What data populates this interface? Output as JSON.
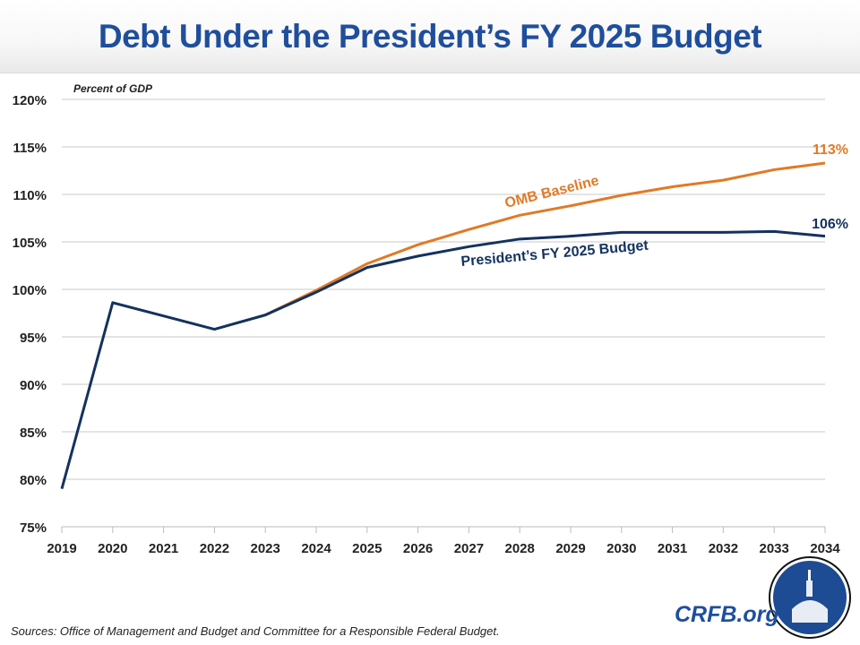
{
  "chart_data": {
    "type": "line",
    "title": "Debt Under the President’s FY 2025 Budget",
    "ylabel": "Percent of GDP",
    "xlabel": "",
    "x": [
      2019,
      2020,
      2021,
      2022,
      2023,
      2024,
      2025,
      2026,
      2027,
      2028,
      2029,
      2030,
      2031,
      2032,
      2033,
      2034
    ],
    "xlim": [
      2019,
      2034
    ],
    "ylim": [
      75,
      120
    ],
    "yticks": [
      75,
      80,
      85,
      90,
      95,
      100,
      105,
      110,
      115,
      120
    ],
    "ytick_labels": [
      "75%",
      "80%",
      "85%",
      "90%",
      "95%",
      "100%",
      "105%",
      "110%",
      "115%",
      "120%"
    ],
    "grid": "horizontal",
    "series": [
      {
        "name": "OMB Baseline",
        "color": "#e07a26",
        "end_label": "113%",
        "x": [
          2023,
          2024,
          2025,
          2026,
          2027,
          2028,
          2029,
          2030,
          2031,
          2032,
          2033,
          2034
        ],
        "values": [
          97.3,
          99.9,
          102.7,
          104.7,
          106.3,
          107.8,
          108.8,
          109.9,
          110.8,
          111.5,
          112.6,
          113.3
        ]
      },
      {
        "name": "President’s FY 2025 Budget",
        "color": "#13325f",
        "end_label": "106%",
        "x": [
          2019,
          2020,
          2021,
          2022,
          2023,
          2024,
          2025,
          2026,
          2027,
          2028,
          2029,
          2030,
          2031,
          2032,
          2033,
          2034
        ],
        "values": [
          79.0,
          98.6,
          97.2,
          95.8,
          97.3,
          99.7,
          102.3,
          103.5,
          104.5,
          105.3,
          105.6,
          106.0,
          106.0,
          106.0,
          106.1,
          105.6
        ]
      }
    ]
  },
  "footer": {
    "sources": "Sources: Office of Management and Budget and Committee for a Responsible Federal Budget.",
    "brand": "CRFB.org"
  },
  "colors": {
    "title": "#1f4e9c",
    "grid": "#c8c8c8"
  }
}
